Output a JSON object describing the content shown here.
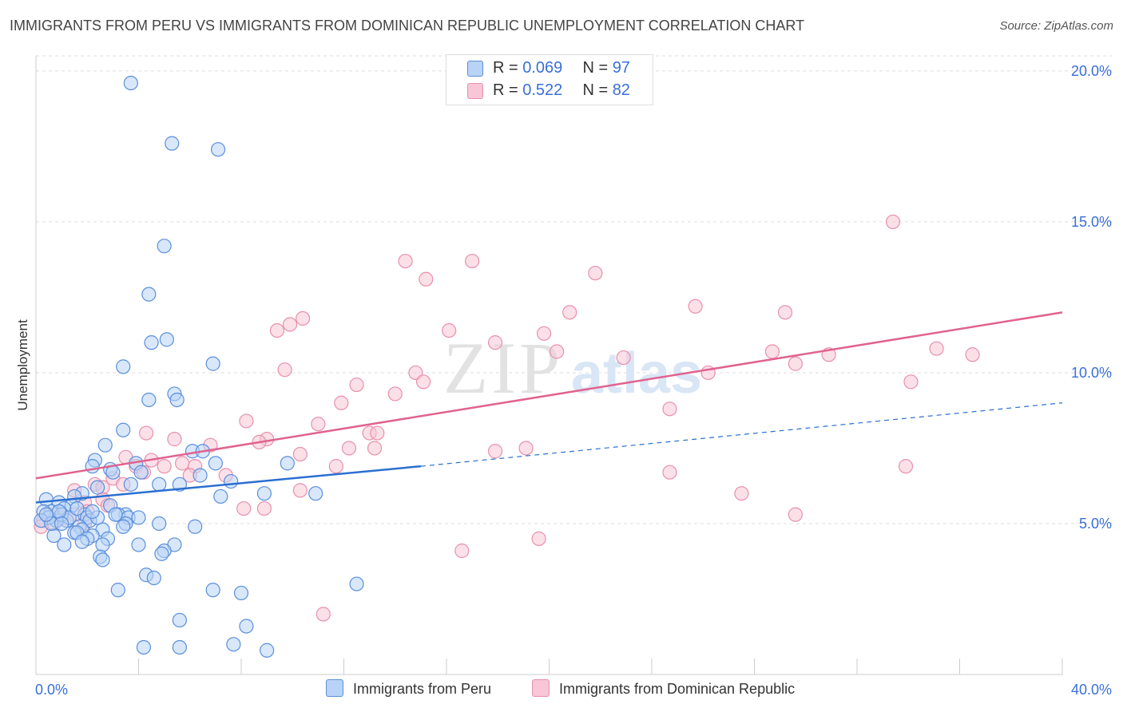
{
  "title": "IMMIGRANTS FROM PERU VS IMMIGRANTS FROM DOMINICAN REPUBLIC UNEMPLOYMENT CORRELATION CHART",
  "source": "Source: ZipAtlas.com",
  "watermark": {
    "zip": "ZIP",
    "atlas": "atlas"
  },
  "legend": {
    "r_label": "R =",
    "n_label": "N =",
    "items": [
      {
        "r": "0.069",
        "n": "97"
      },
      {
        "r": "0.522",
        "n": "82"
      }
    ]
  },
  "colors": {
    "peru_fill": "#b8d3f5",
    "peru_stroke": "#5b8fdc",
    "peru_line": "#2a6fd0",
    "dom_fill": "#f8c6d6",
    "dom_stroke": "#e890ad",
    "dom_line": "#e0628f",
    "tick_label": "#3a6fd8"
  },
  "chart_data": {
    "type": "scatter",
    "ylabel": "Unemployment",
    "x_tick_labels": [
      "0.0%",
      "40.0%"
    ],
    "y_tick_labels": [
      "5.0%",
      "10.0%",
      "15.0%",
      "20.0%"
    ],
    "xlim": [
      0,
      40
    ],
    "ylim": [
      0,
      20.5
    ],
    "y_ticks": [
      5,
      10,
      15,
      20
    ],
    "grid": "horizontal dashed",
    "legend_placement": "top-center",
    "series": [
      {
        "name": "Immigrants from Peru",
        "trend": {
          "x": [
            0,
            15
          ],
          "y": [
            5.7,
            6.9
          ],
          "dashed_to": [
            40,
            9.0
          ]
        },
        "points": [
          [
            3.7,
            19.6
          ],
          [
            5.3,
            17.6
          ],
          [
            7.1,
            17.4
          ],
          [
            5.0,
            14.2
          ],
          [
            4.4,
            12.6
          ],
          [
            5.1,
            11.1
          ],
          [
            4.5,
            11.0
          ],
          [
            3.4,
            10.2
          ],
          [
            6.9,
            10.3
          ],
          [
            5.4,
            9.3
          ],
          [
            5.5,
            9.1
          ],
          [
            4.4,
            9.1
          ],
          [
            3.4,
            8.1
          ],
          [
            2.7,
            7.6
          ],
          [
            6.1,
            7.4
          ],
          [
            6.5,
            7.4
          ],
          [
            2.3,
            7.1
          ],
          [
            3.9,
            7.0
          ],
          [
            7.0,
            7.0
          ],
          [
            9.8,
            7.0
          ],
          [
            2.2,
            6.9
          ],
          [
            2.9,
            6.8
          ],
          [
            3.0,
            6.7
          ],
          [
            3.7,
            6.3
          ],
          [
            4.1,
            6.7
          ],
          [
            6.4,
            6.6
          ],
          [
            7.6,
            6.4
          ],
          [
            5.6,
            6.3
          ],
          [
            4.8,
            6.3
          ],
          [
            2.4,
            6.2
          ],
          [
            1.8,
            6.0
          ],
          [
            10.9,
            6.0
          ],
          [
            7.2,
            5.9
          ],
          [
            8.9,
            6.0
          ],
          [
            1.5,
            5.9
          ],
          [
            0.4,
            5.8
          ],
          [
            0.9,
            5.7
          ],
          [
            1.4,
            5.6
          ],
          [
            2.9,
            5.6
          ],
          [
            1.1,
            5.5
          ],
          [
            0.6,
            5.4
          ],
          [
            1.9,
            5.3
          ],
          [
            0.3,
            5.4
          ],
          [
            3.5,
            5.3
          ],
          [
            3.2,
            5.3
          ],
          [
            3.6,
            5.2
          ],
          [
            2.0,
            5.2
          ],
          [
            2.1,
            5.1
          ],
          [
            1.2,
            5.1
          ],
          [
            0.8,
            5.1
          ],
          [
            0.5,
            5.2
          ],
          [
            4.0,
            5.2
          ],
          [
            3.5,
            5.0
          ],
          [
            3.4,
            4.9
          ],
          [
            4.8,
            5.0
          ],
          [
            6.2,
            4.9
          ],
          [
            2.6,
            4.8
          ],
          [
            1.7,
            4.9
          ],
          [
            1.8,
            4.8
          ],
          [
            1.5,
            4.7
          ],
          [
            1.6,
            4.7
          ],
          [
            2.2,
            4.6
          ],
          [
            2.0,
            4.5
          ],
          [
            0.7,
            4.6
          ],
          [
            1.8,
            4.4
          ],
          [
            1.1,
            4.3
          ],
          [
            2.8,
            4.5
          ],
          [
            5.4,
            4.3
          ],
          [
            4.0,
            4.3
          ],
          [
            2.6,
            4.3
          ],
          [
            5.0,
            4.1
          ],
          [
            4.9,
            4.0
          ],
          [
            2.5,
            3.9
          ],
          [
            2.6,
            3.8
          ],
          [
            4.3,
            3.3
          ],
          [
            4.6,
            3.2
          ],
          [
            12.5,
            3.0
          ],
          [
            3.2,
            2.8
          ],
          [
            6.9,
            2.8
          ],
          [
            8.0,
            2.7
          ],
          [
            5.6,
            1.8
          ],
          [
            8.2,
            1.6
          ],
          [
            4.2,
            0.9
          ],
          [
            5.6,
            0.9
          ],
          [
            7.7,
            1.0
          ],
          [
            9.0,
            0.8
          ],
          [
            1.0,
            5.3
          ],
          [
            0.2,
            5.1
          ],
          [
            0.6,
            5.0
          ],
          [
            1.3,
            5.2
          ],
          [
            0.9,
            5.4
          ],
          [
            1.6,
            5.5
          ],
          [
            2.4,
            5.2
          ],
          [
            1.0,
            5.0
          ],
          [
            0.4,
            5.3
          ],
          [
            2.2,
            5.4
          ],
          [
            3.1,
            5.3
          ]
        ]
      },
      {
        "name": "Immigrants from Dominican Republic",
        "trend": {
          "x": [
            0,
            40
          ],
          "y": [
            6.5,
            12.0
          ]
        },
        "points": [
          [
            33.4,
            15.0
          ],
          [
            14.4,
            13.7
          ],
          [
            17.0,
            13.7
          ],
          [
            21.8,
            13.3
          ],
          [
            15.2,
            13.1
          ],
          [
            25.7,
            12.2
          ],
          [
            20.8,
            12.0
          ],
          [
            29.2,
            12.0
          ],
          [
            10.4,
            11.8
          ],
          [
            9.9,
            11.6
          ],
          [
            9.4,
            11.4
          ],
          [
            16.1,
            11.4
          ],
          [
            19.8,
            11.3
          ],
          [
            17.9,
            11.0
          ],
          [
            35.1,
            10.8
          ],
          [
            20.3,
            10.7
          ],
          [
            36.5,
            10.6
          ],
          [
            28.7,
            10.7
          ],
          [
            30.9,
            10.6
          ],
          [
            22.9,
            10.5
          ],
          [
            29.6,
            10.3
          ],
          [
            26.2,
            10.0
          ],
          [
            9.7,
            10.1
          ],
          [
            14.8,
            10.0
          ],
          [
            15.1,
            9.7
          ],
          [
            12.5,
            9.6
          ],
          [
            34.1,
            9.7
          ],
          [
            14.0,
            9.3
          ],
          [
            11.9,
            9.0
          ],
          [
            24.7,
            8.8
          ],
          [
            8.2,
            8.4
          ],
          [
            11.0,
            8.3
          ],
          [
            4.3,
            8.0
          ],
          [
            13.0,
            8.0
          ],
          [
            13.3,
            8.0
          ],
          [
            9.0,
            7.8
          ],
          [
            8.7,
            7.7
          ],
          [
            5.4,
            7.8
          ],
          [
            6.8,
            7.6
          ],
          [
            12.2,
            7.5
          ],
          [
            13.2,
            7.5
          ],
          [
            17.9,
            7.4
          ],
          [
            19.1,
            7.5
          ],
          [
            10.3,
            7.3
          ],
          [
            4.5,
            7.1
          ],
          [
            5.7,
            7.0
          ],
          [
            6.2,
            6.9
          ],
          [
            3.9,
            6.9
          ],
          [
            7.4,
            6.6
          ],
          [
            33.9,
            6.9
          ],
          [
            24.7,
            6.7
          ],
          [
            11.7,
            6.9
          ],
          [
            5.0,
            6.9
          ],
          [
            6.0,
            6.6
          ],
          [
            3.5,
            7.2
          ],
          [
            4.2,
            6.7
          ],
          [
            3.0,
            6.5
          ],
          [
            3.4,
            6.3
          ],
          [
            2.3,
            6.3
          ],
          [
            2.6,
            6.2
          ],
          [
            10.3,
            6.1
          ],
          [
            27.5,
            6.0
          ],
          [
            1.5,
            6.1
          ],
          [
            2.6,
            5.8
          ],
          [
            1.9,
            5.7
          ],
          [
            8.1,
            5.5
          ],
          [
            8.9,
            5.5
          ],
          [
            1.0,
            5.2
          ],
          [
            1.5,
            5.3
          ],
          [
            2.0,
            5.4
          ],
          [
            2.8,
            5.6
          ],
          [
            0.3,
            5.1
          ],
          [
            0.7,
            5.0
          ],
          [
            1.2,
            5.1
          ],
          [
            0.5,
            5.3
          ],
          [
            0.9,
            5.2
          ],
          [
            29.6,
            5.3
          ],
          [
            19.6,
            4.5
          ],
          [
            16.6,
            4.1
          ],
          [
            11.2,
            2.0
          ],
          [
            1.9,
            5.0
          ],
          [
            0.2,
            4.9
          ]
        ]
      }
    ]
  }
}
